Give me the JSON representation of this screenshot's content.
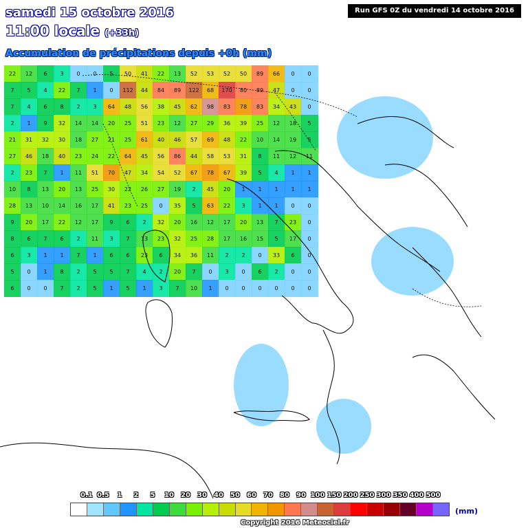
{
  "header": {
    "date": "samedi 15 octobre 2016",
    "hour": "11:00 locale",
    "offset": "(+33h)",
    "subtitle": "Accumulation de précipitations depuis +0h (mm)",
    "run": "Run GFS 0Z du vendredi 14 octobre 2016"
  },
  "legend": {
    "ticks": [
      "0.1",
      "0.5",
      "1",
      "2",
      "5",
      "10",
      "20",
      "30",
      "40",
      "50",
      "60",
      "70",
      "80",
      "90",
      "100",
      "150",
      "200",
      "250",
      "300",
      "350",
      "400",
      "500"
    ],
    "colors": [
      "#ffffff",
      "#a0e6ff",
      "#5fc8ff",
      "#1f96ff",
      "#00e6a0",
      "#00cc50",
      "#3cdc3c",
      "#78f000",
      "#b4f000",
      "#c8dc00",
      "#e6dc28",
      "#f0b400",
      "#f09600",
      "#ff7850",
      "#d28c8c",
      "#c86432",
      "#dc3c3c",
      "#ff0000",
      "#c80000",
      "#960000",
      "#640028",
      "#b400c8",
      "#7864ff"
    ],
    "unit": "(mm)"
  },
  "copyright": "Copyright 2016 Meteociel.fr",
  "precip_values": [
    [
      22,
      12,
      6,
      3,
      0,
      0,
      5,
      50,
      41,
      22,
      13,
      52,
      53,
      52,
      50,
      89,
      66,
      0,
      0
    ],
    [
      7,
      5,
      4,
      22,
      7,
      1,
      0,
      112,
      44,
      84,
      89,
      122,
      68,
      170,
      80,
      89,
      47,
      0,
      0
    ],
    [
      7,
      4,
      6,
      8,
      2,
      3,
      64,
      48,
      56,
      38,
      45,
      62,
      98,
      83,
      78,
      83,
      34,
      43,
      0
    ],
    [
      2,
      1,
      9,
      32,
      14,
      14,
      20,
      25,
      51,
      23,
      12,
      27,
      29,
      36,
      39,
      25,
      12,
      18,
      5
    ],
    [
      21,
      31,
      32,
      30,
      18,
      27,
      21,
      25,
      61,
      40,
      46,
      57,
      69,
      48,
      22,
      10,
      14,
      19,
      5
    ],
    [
      27,
      46,
      18,
      40,
      23,
      24,
      22,
      64,
      45,
      56,
      86,
      44,
      58,
      53,
      31,
      8,
      11,
      12,
      11
    ],
    [
      2,
      23,
      7,
      1,
      11,
      51,
      70,
      47,
      34,
      54,
      52,
      67,
      78,
      67,
      39,
      5,
      4,
      1,
      1
    ],
    [
      10,
      8,
      13,
      20,
      13,
      25,
      30,
      22,
      26,
      27,
      19,
      2,
      45,
      20,
      1,
      1,
      1,
      1,
      1
    ],
    [
      28,
      13,
      10,
      14,
      16,
      17,
      41,
      23,
      25,
      0,
      35,
      5,
      63,
      22,
      3,
      1,
      1,
      0,
      0
    ],
    [
      9,
      20,
      17,
      22,
      12,
      17,
      9,
      6,
      2,
      32,
      20,
      16,
      12,
      17,
      20,
      13,
      7,
      23,
      0
    ],
    [
      8,
      6,
      7,
      6,
      2,
      11,
      3,
      7,
      13,
      23,
      32,
      25,
      28,
      17,
      16,
      15,
      5,
      17,
      0
    ],
    [
      6,
      3,
      1,
      1,
      7,
      1,
      6,
      6,
      23,
      6,
      34,
      36,
      11,
      2,
      2,
      0,
      33,
      6,
      0
    ],
    [
      5,
      0,
      1,
      8,
      2,
      5,
      5,
      7,
      4,
      2,
      20,
      7,
      0,
      3,
      0,
      6,
      2,
      0,
      0
    ],
    [
      6,
      0,
      0,
      7,
      2,
      5,
      1,
      5,
      1,
      3,
      7,
      10,
      1,
      0,
      0,
      0,
      0,
      0,
      0
    ]
  ]
}
